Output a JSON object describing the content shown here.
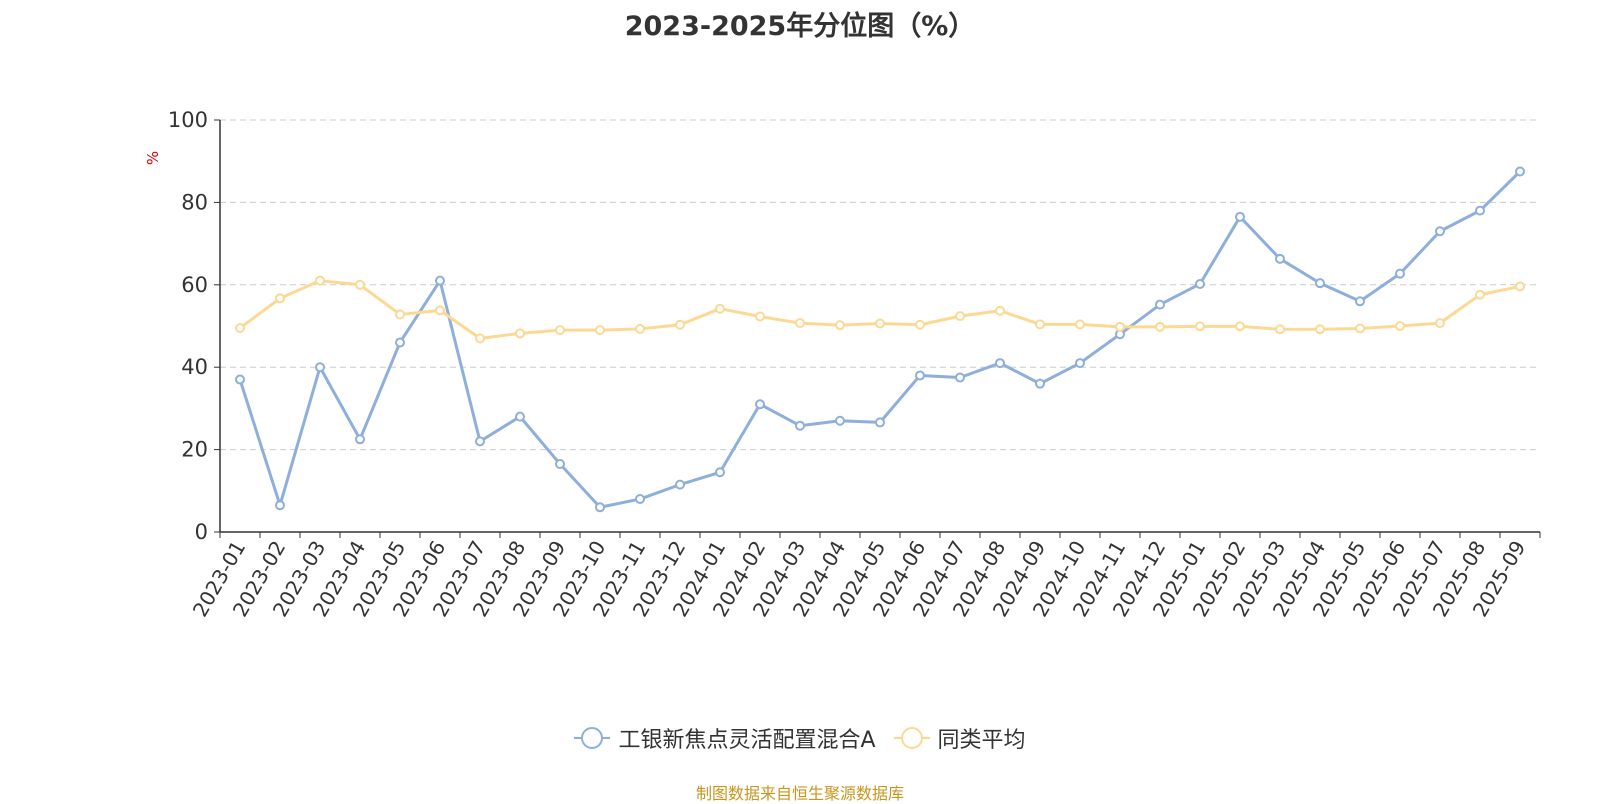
{
  "chart_data": {
    "type": "line",
    "title": "2023-2025年分位图（%）",
    "ylabel": "%",
    "xlabel": "",
    "ylim": [
      0,
      100
    ],
    "yticks": [
      0,
      20,
      40,
      60,
      80,
      100
    ],
    "grid": "horizontal dashed",
    "legend_position": "bottom",
    "categories": [
      "2023-01",
      "2023-02",
      "2023-03",
      "2023-04",
      "2023-05",
      "2023-06",
      "2023-07",
      "2023-08",
      "2023-09",
      "2023-10",
      "2023-11",
      "2023-12",
      "2024-01",
      "2024-02",
      "2024-03",
      "2024-04",
      "2024-05",
      "2024-06",
      "2024-07",
      "2024-08",
      "2024-09",
      "2024-10",
      "2024-11",
      "2024-12",
      "2025-01",
      "2025-02",
      "2025-03",
      "2025-04",
      "2025-05",
      "2025-06",
      "2025-07",
      "2025-08",
      "2025-09"
    ],
    "series": [
      {
        "name": "工银新焦点灵活配置混合A",
        "color": "#8eaedb",
        "values": [
          37,
          6.5,
          40,
          22.5,
          46,
          61,
          22,
          28,
          16.5,
          6,
          8,
          11.5,
          14.5,
          31,
          25.8,
          27,
          26.6,
          38,
          37.5,
          41,
          36,
          41,
          48,
          55.2,
          60.2,
          76.5,
          66.3,
          60.4,
          56,
          62.7,
          73,
          78,
          87.5
        ]
      },
      {
        "name": "同类平均",
        "color": "#fcd993",
        "values": [
          49.5,
          56.7,
          61,
          60,
          52.8,
          53.8,
          47,
          48.2,
          49,
          49,
          49.3,
          50.3,
          54.2,
          52.3,
          50.7,
          50.2,
          50.6,
          50.3,
          52.4,
          53.7,
          50.4,
          50.4,
          49.8,
          49.8,
          49.9,
          49.9,
          49.2,
          49.2,
          49.4,
          50,
          50.7,
          57.6,
          59.6
        ]
      }
    ]
  },
  "footer": {
    "source": "制图数据来自恒生聚源数据库"
  }
}
